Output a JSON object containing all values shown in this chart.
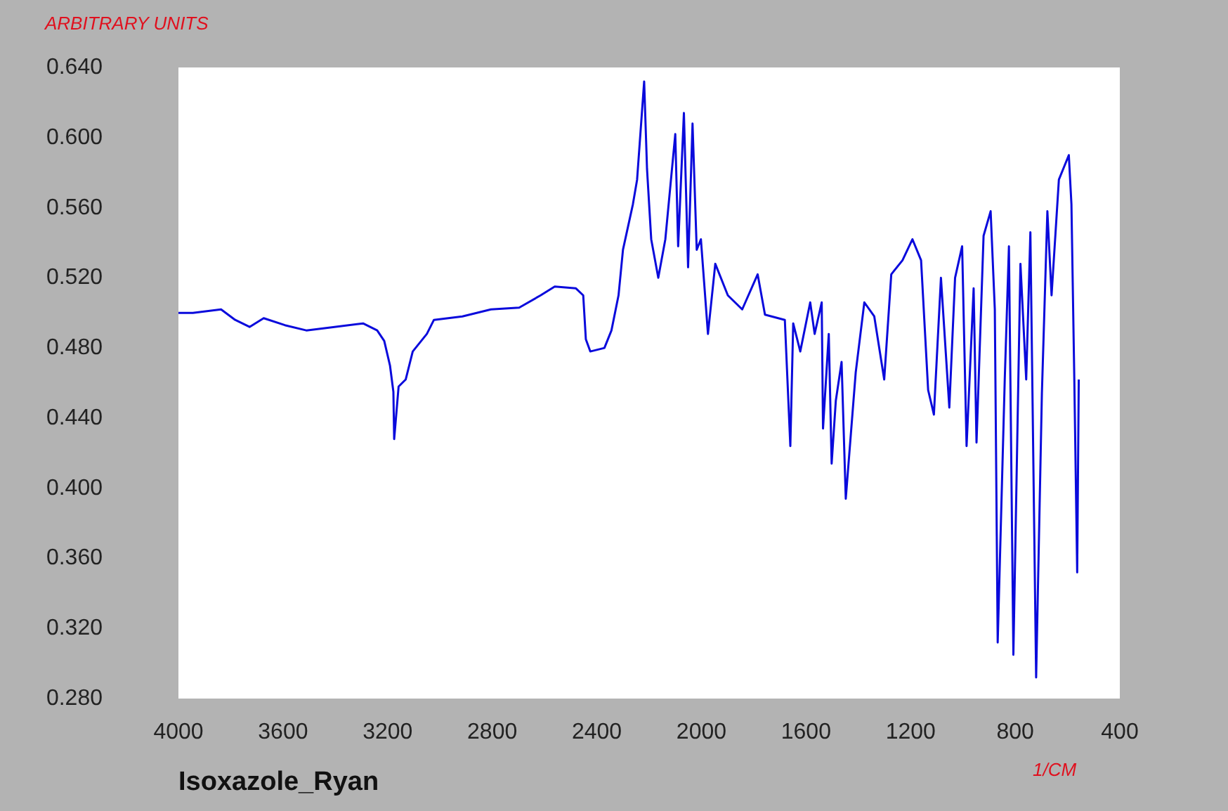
{
  "chart_data": {
    "type": "line",
    "title": "Isoxazole_Ryan",
    "xlabel": "1/CM",
    "ylabel": "ARBITRARY UNITS",
    "xlim": [
      4000,
      400
    ],
    "xticks": [
      4000,
      3600,
      3200,
      2800,
      2400,
      2000,
      1600,
      1200,
      800,
      400
    ],
    "ylim": [
      0.28,
      0.64
    ],
    "yticks": [
      {
        "value": 0.28,
        "label": "0.280"
      },
      {
        "value": 0.32,
        "label": "0.320"
      },
      {
        "value": 0.36,
        "label": "0.360"
      },
      {
        "value": 0.4,
        "label": "0.400"
      },
      {
        "value": 0.44,
        "label": "0.440"
      },
      {
        "value": 0.48,
        "label": "0.480"
      },
      {
        "value": 0.52,
        "label": "0.520"
      },
      {
        "value": 0.56,
        "label": "0.560"
      },
      {
        "value": 0.6,
        "label": "0.600"
      },
      {
        "value": 0.64,
        "label": "0.640"
      }
    ],
    "grid": false,
    "marker": "none",
    "line_style": "solid",
    "series": [
      {
        "color": "#0a0adc",
        "x": [
          4000,
          3945,
          3837,
          3783,
          3728,
          3674,
          3593,
          3511,
          3403,
          3294,
          3240,
          3213,
          3191,
          3178,
          3175,
          3158,
          3131,
          3104,
          3050,
          3023,
          2914,
          2805,
          2697,
          2615,
          2561,
          2480,
          2452,
          2442,
          2425,
          2371,
          2344,
          2317,
          2300,
          2262,
          2246,
          2219,
          2208,
          2192,
          2165,
          2138,
          2100,
          2089,
          2067,
          2051,
          2034,
          2018,
          2002,
          1975,
          1947,
          1899,
          1844,
          1785,
          1757,
          1681,
          1660,
          1649,
          1622,
          1584,
          1567,
          1540,
          1535,
          1513,
          1502,
          1486,
          1464,
          1448,
          1410,
          1377,
          1339,
          1301,
          1274,
          1231,
          1193,
          1160,
          1133,
          1111,
          1084,
          1052,
          1030,
          1003,
          986,
          959,
          948,
          921,
          894,
          878,
          867,
          840,
          824,
          807,
          780,
          758,
          742,
          720,
          698,
          677,
          661,
          633,
          595,
          585,
          574,
          563,
          557
        ],
        "values": [
          0.5,
          0.5,
          0.502,
          0.496,
          0.492,
          0.497,
          0.493,
          0.49,
          0.492,
          0.494,
          0.49,
          0.484,
          0.47,
          0.455,
          0.428,
          0.458,
          0.462,
          0.478,
          0.488,
          0.496,
          0.498,
          0.502,
          0.503,
          0.51,
          0.515,
          0.514,
          0.51,
          0.485,
          0.478,
          0.48,
          0.49,
          0.51,
          0.536,
          0.562,
          0.576,
          0.632,
          0.582,
          0.542,
          0.52,
          0.542,
          0.602,
          0.538,
          0.614,
          0.526,
          0.608,
          0.536,
          0.542,
          0.488,
          0.528,
          0.51,
          0.502,
          0.522,
          0.499,
          0.496,
          0.424,
          0.494,
          0.478,
          0.506,
          0.488,
          0.506,
          0.434,
          0.488,
          0.414,
          0.45,
          0.472,
          0.394,
          0.466,
          0.506,
          0.498,
          0.462,
          0.522,
          0.53,
          0.542,
          0.53,
          0.456,
          0.442,
          0.52,
          0.446,
          0.52,
          0.538,
          0.424,
          0.514,
          0.426,
          0.544,
          0.558,
          0.502,
          0.312,
          0.462,
          0.538,
          0.305,
          0.528,
          0.462,
          0.546,
          0.292,
          0.454,
          0.558,
          0.51,
          0.576,
          0.59,
          0.562,
          0.462,
          0.352,
          0.462
        ]
      }
    ]
  }
}
